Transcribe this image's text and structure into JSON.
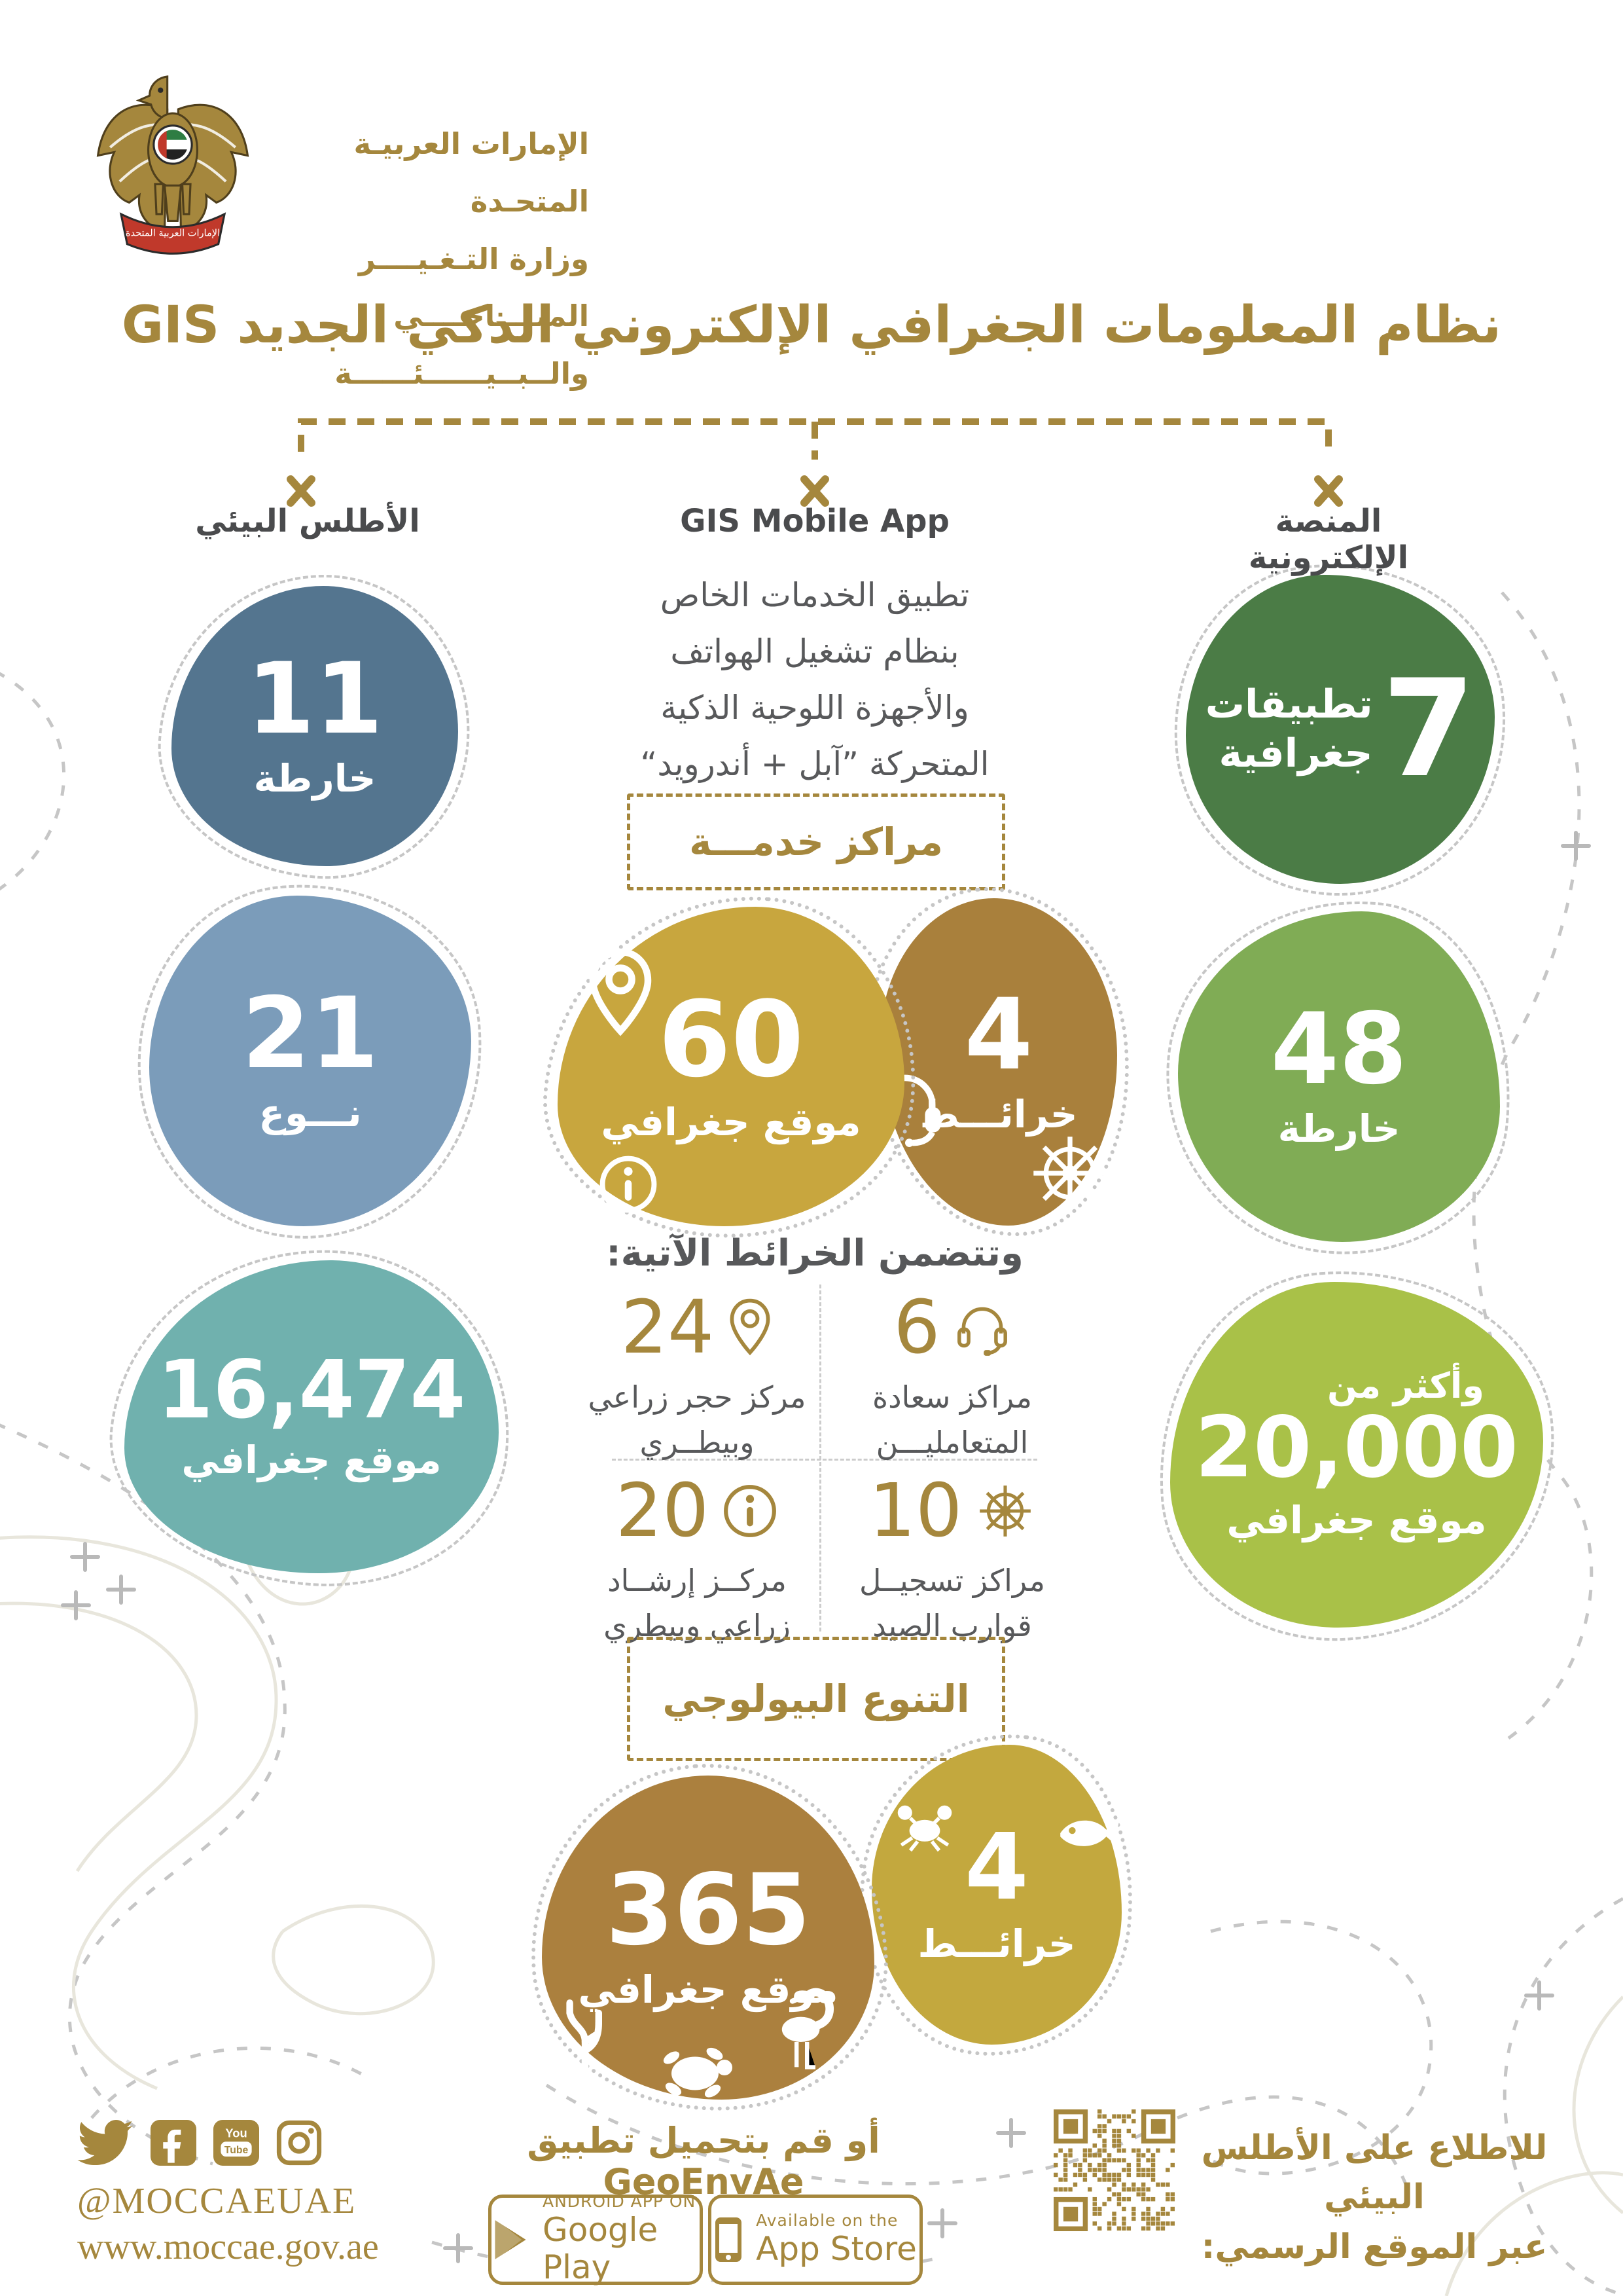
{
  "header": {
    "emblem_banner_text": "الإمارات العربية المتحدة",
    "ministry_line1": "الإمارات العربيـة المتحـدة",
    "ministry_line2": "وزارة التـغـيــــر المنــــاخــــي",
    "ministry_line3": "والــبــيــــــئــــــة"
  },
  "title": "نظام المعلومات الجغرافي الإلكتروني الذكي الجديد GIS",
  "branches": {
    "atlas": {
      "label": "الأطلس البيئي",
      "stats": [
        {
          "value": "11",
          "unit": "خارطة"
        },
        {
          "value": "21",
          "unit": "نـــوع"
        },
        {
          "value": "16,474",
          "unit": "موقع جغرافي"
        }
      ]
    },
    "mobile_app": {
      "label": "GIS Mobile App",
      "description": "تطبيق الخدمات الخاص\nبنظام تشغيل الهواتف\nوالأجهزة اللوحية الذكية\nالمتحركة ”آبل + أندرويد“"
    },
    "platform": {
      "label": "المنصة الإلكترونية",
      "stats": [
        {
          "value": "7",
          "unit": "تطبيقات\nجغرافية"
        },
        {
          "value": "48",
          "unit": "خارطة"
        },
        {
          "prefix": "وأكثر من",
          "value": "20,000",
          "unit": "موقع جغرافي"
        }
      ]
    }
  },
  "service_centers": {
    "box_label": "مراكز خدمـــة",
    "geo_sites": {
      "value": "60",
      "unit": "موقع جغرافي"
    },
    "maps": {
      "value": "4",
      "unit": "خرائـــط"
    },
    "includes_heading": "وتتضمن الخرائط الآتية:",
    "items": [
      {
        "value": "24",
        "icon": "location-pin",
        "label": "مركز حجر زراعي\nوبيطــري"
      },
      {
        "value": "6",
        "icon": "headset",
        "label": "مراكز سعادة\nالمتعامليـــن"
      },
      {
        "value": "20",
        "icon": "info",
        "label": "مركــز إرشــاد\nزراعي وبيطري"
      },
      {
        "value": "10",
        "icon": "ship-wheel",
        "label": "مراكز تسجيــل\nقوارب الصيد"
      }
    ]
  },
  "biodiversity": {
    "box_label": "التنوع البيولوجي",
    "geo_sites": {
      "value": "365",
      "unit": "موقع جغرافي"
    },
    "maps": {
      "value": "4",
      "unit": "خرائـــط"
    }
  },
  "footer": {
    "social_icons": [
      "twitter",
      "facebook",
      "youtube",
      "instagram"
    ],
    "handle": "@MOCCAEUAE",
    "website": "www.moccae.gov.ae",
    "download_text": "أو قم بتحميل تطبيق GeoEnvAe",
    "google_play": {
      "top": "ANDROID APP ON",
      "bottom": "Google Play"
    },
    "app_store": {
      "top": "Available on the",
      "bottom": "App Store"
    },
    "qr_caption": "للاطلاع على الأطلس البيئي\nعبر الموقع الرسمي:"
  },
  "colors": {
    "accent_gold": "#a5873d",
    "dark_green": "#4b7c46",
    "medium_green": "#80ac55",
    "lime_green": "#a9c148",
    "slate_blue": "#54758f",
    "light_blue": "#7b9cba",
    "teal": "#70b1ae",
    "yellow_gold": "#c8a63e",
    "brown_gold": "#a9803c",
    "bio_brown": "#ab803e",
    "bio_yellow": "#c3a83e",
    "text_gray": "#58595b",
    "label_dark": "#4a4b4d",
    "contour_gray": "#c6c6c6",
    "contour_beige": "#e8e6dc",
    "flag_red": "#c0392b"
  }
}
